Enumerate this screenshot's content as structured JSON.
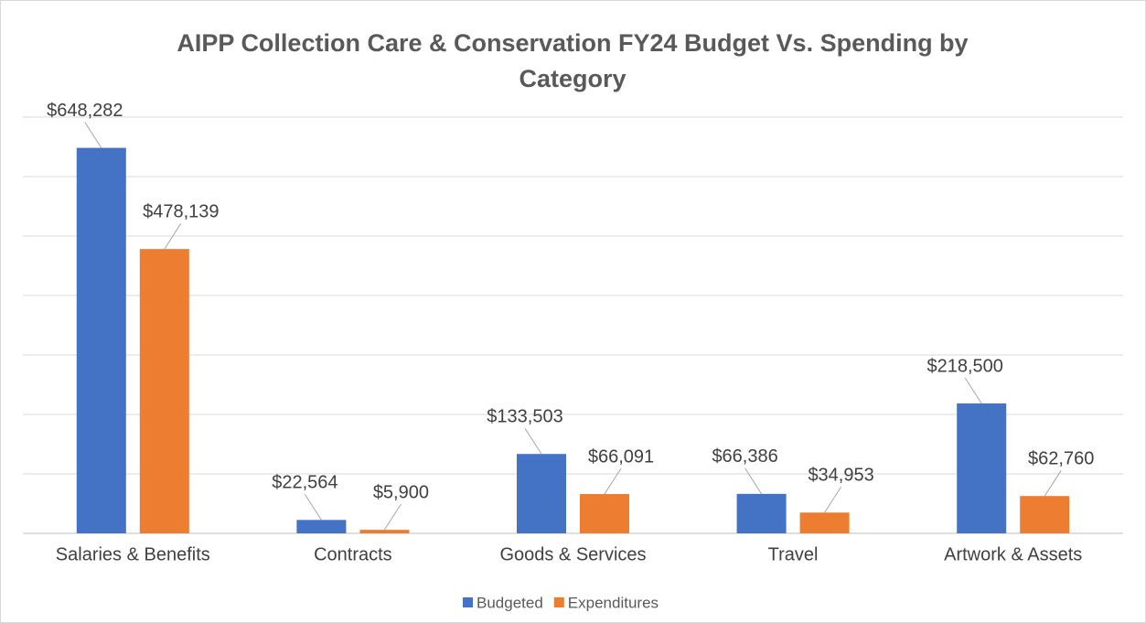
{
  "chart_data": {
    "type": "bar",
    "title": "AIPP Collection Care & Conservation FY24 Budget Vs. Spending by Category",
    "categories": [
      "Salaries & Benefits",
      "Contracts",
      "Goods & Services",
      "Travel",
      "Artwork & Assets"
    ],
    "series": [
      {
        "name": "Budgeted",
        "color": "#4472c4",
        "values": [
          648282,
          22564,
          133503,
          66386,
          218500
        ],
        "value_labels": [
          "$648,282",
          "$22,564",
          "$133,503",
          "$66,386",
          "$218,500"
        ]
      },
      {
        "name": "Expenditures",
        "color": "#ed7d31",
        "values": [
          478139,
          5900,
          66091,
          34953,
          62760
        ],
        "value_labels": [
          "$478,139",
          "$5,900",
          "$66,091",
          "$34,953",
          "$62,760"
        ]
      }
    ],
    "ylim": [
      0,
      700000
    ],
    "yticks": [
      0,
      100000,
      200000,
      300000,
      400000,
      500000,
      600000,
      700000
    ],
    "grid": true,
    "legend": "bottom"
  }
}
